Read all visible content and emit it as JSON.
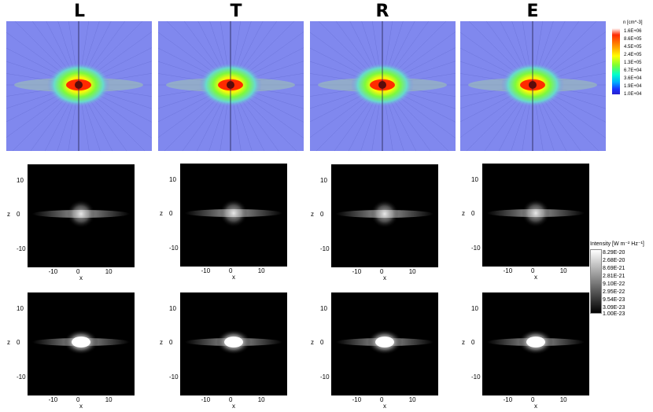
{
  "columns": [
    "L",
    "T",
    "R",
    "E"
  ],
  "density_colorbar": {
    "title": "n [cm^-3]",
    "ticks": [
      "1.6E+06",
      "8.6E+05",
      "4.5E+05",
      "2.4E+05",
      "1.3E+05",
      "6.7E+04",
      "3.6E+04",
      "1.9E+04",
      "1.0E+04"
    ],
    "colors": [
      "#2a1fcc",
      "#1a33ff",
      "#00aaff",
      "#00ffcc",
      "#7cff33",
      "#ffff00",
      "#ffaa00",
      "#ff2a00",
      "#ffffff"
    ]
  },
  "intensity_colorbar": {
    "title": "Intensity [W m⁻² Hz⁻¹]",
    "ticks": [
      "8.29E-20",
      "2.68E-20",
      "8.69E-21",
      "2.81E-21",
      "9.10E-22",
      "2.95E-22",
      "9.54E-23",
      "3.09E-23",
      "1.00E-23"
    ]
  },
  "axes": {
    "x_label": "x",
    "z_label": "z",
    "x_ticks": [
      "-10",
      "0",
      "10"
    ],
    "z_ticks": [
      "10",
      "0",
      "-10"
    ]
  }
}
